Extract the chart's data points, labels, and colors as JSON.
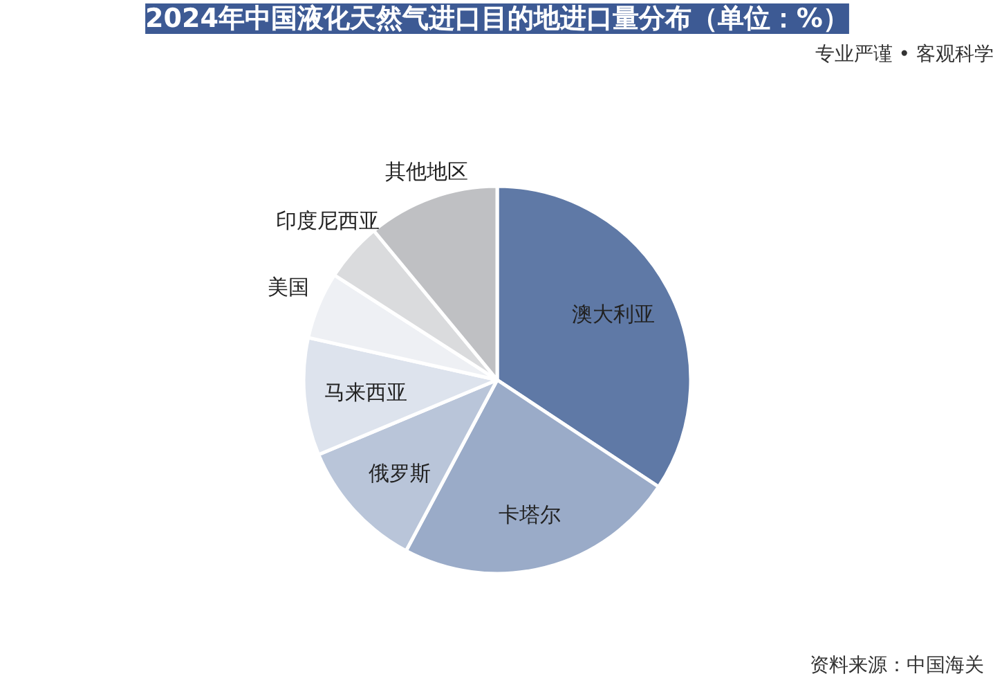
{
  "chart_data": {
    "type": "pie",
    "title": "2024年中国液化天然气进口目的地进口量分布（单位：%）",
    "subtitle": "专业严谨 • 客观科学",
    "categories": [
      "澳大利亚",
      "卡塔尔",
      "俄罗斯",
      "马来西亚",
      "美国",
      "印度尼西亚",
      "其他地区"
    ],
    "values": [
      34.3,
      23.5,
      10.9,
      9.8,
      5.6,
      4.9,
      11.0
    ],
    "colors": [
      "#5f79a6",
      "#9aabc8",
      "#b9c5d9",
      "#dde3ed",
      "#eef0f4",
      "#dadbdd",
      "#bfc0c3"
    ],
    "annotations": [
      "资料来源：中国海关"
    ]
  }
}
